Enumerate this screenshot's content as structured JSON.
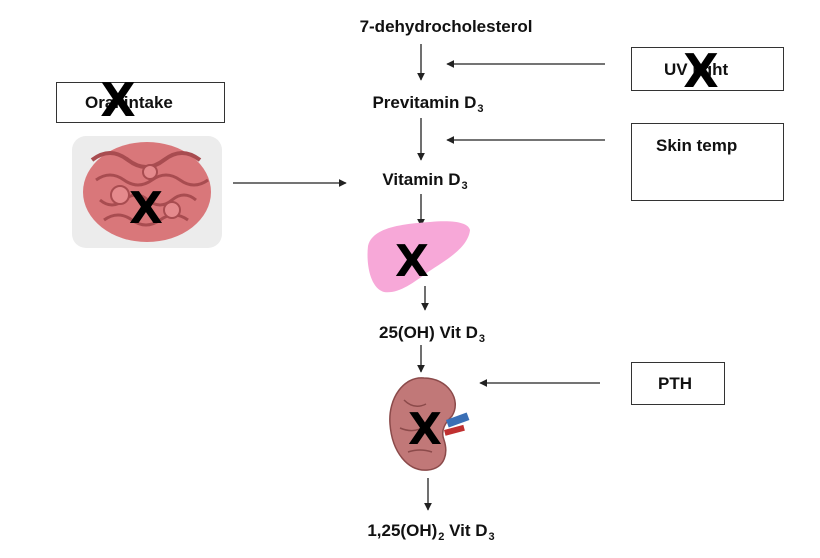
{
  "pathway": {
    "step1": "7-dehydrocholesterol",
    "step2": {
      "text": "Previtamin D",
      "sub": "3"
    },
    "step3": {
      "text": "Vitamin D",
      "sub": "3"
    },
    "step4": {
      "text": "25(OH) Vit D",
      "sub": "3"
    },
    "step5": {
      "pre": "1,25(OH)",
      "sub1": "2",
      "mid": " Vit D",
      "sub2": "3"
    }
  },
  "boxes": {
    "oral_intake": "Oral intake",
    "uv_light": "UV light",
    "skin_temp": "Skin temp",
    "pth": "PTH"
  },
  "marks": {
    "x": "X"
  },
  "colors": {
    "liver": "#f7a8d8",
    "intestine": "#d9777a",
    "kidney": "#b56a6a",
    "box_border": "#333333"
  }
}
